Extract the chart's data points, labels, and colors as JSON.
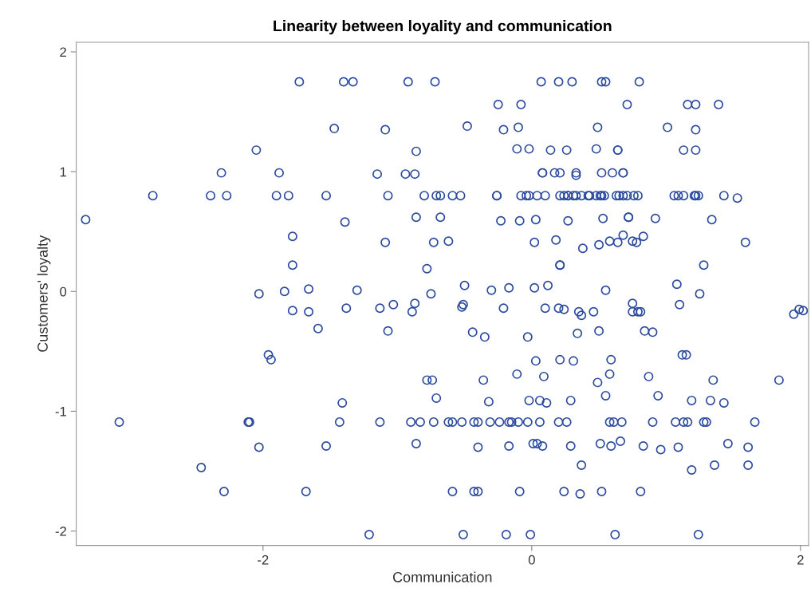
{
  "chart_data": {
    "type": "scatter",
    "title": "Linearity between loyality and communication",
    "xlabel": "Communication",
    "ylabel": "Customers' loyalty",
    "xlim": [
      -3.39,
      2.06
    ],
    "ylim": [
      -2.12,
      2.08
    ],
    "xticks": [
      -2,
      0,
      2
    ],
    "yticks": [
      -2,
      -1,
      0,
      1,
      2
    ],
    "grid": false,
    "marker": "circle",
    "series": [
      {
        "color": "#2b4a9e",
        "x": [
          -1.73,
          -1.4,
          -1.33,
          -0.92,
          -0.72,
          0.07,
          0.2,
          0.3,
          0.52,
          0.55,
          0.8,
          -0.25,
          -0.08,
          0.71,
          1.16,
          1.22,
          1.39,
          -1.47,
          -1.09,
          -0.48,
          -0.21,
          -0.1,
          0.49,
          1.01,
          1.22,
          -2.05,
          -0.86,
          -0.11,
          -0.02,
          0.14,
          0.26,
          0.48,
          0.64,
          0.64,
          1.13,
          1.22,
          -2.31,
          -1.88,
          -1.15,
          -0.94,
          -0.87,
          0.08,
          0.08,
          0.17,
          0.21,
          0.33,
          0.33,
          0.52,
          0.6,
          0.68,
          0.68,
          -2.82,
          -2.39,
          -2.27,
          -1.9,
          -1.81,
          -1.53,
          -1.07,
          -0.8,
          -0.71,
          -0.68,
          -0.59,
          -0.53,
          -0.26,
          -0.26,
          -0.08,
          -0.04,
          -0.02,
          0.04,
          0.1,
          0.21,
          0.24,
          0.27,
          0.27,
          0.31,
          0.33,
          0.37,
          0.42,
          0.43,
          0.48,
          0.51,
          0.52,
          0.54,
          0.63,
          0.65,
          0.68,
          0.71,
          0.76,
          0.79,
          1.06,
          1.09,
          1.13,
          1.21,
          1.22,
          1.24,
          1.43,
          1.53,
          -3.32,
          -1.39,
          -0.86,
          -0.68,
          -0.23,
          -0.09,
          0.03,
          0.27,
          0.53,
          0.72,
          0.72,
          0.92,
          1.34,
          -1.78,
          -1.09,
          -0.73,
          -0.62,
          0.02,
          0.18,
          0.38,
          0.5,
          0.58,
          0.64,
          0.68,
          0.75,
          0.78,
          0.83,
          1.59,
          -1.78,
          0.21,
          0.21,
          1.28,
          -0.78,
          -1.66,
          -1.84,
          -2.03,
          -1.3,
          -0.75,
          -0.5,
          -0.3,
          -0.17,
          0.02,
          0.12,
          0.55,
          1.08,
          1.25,
          -1.78,
          -1.66,
          -1.59,
          -1.96,
          -1.94,
          -3.07,
          -2.11,
          -2.1,
          -2.03,
          -2.46,
          -2.29,
          -1.68,
          -1.53,
          -1.41,
          -1.43,
          -1.38,
          -1.13,
          -1.03,
          -0.87,
          -0.89,
          -0.51,
          -0.52,
          -0.21,
          0.1,
          0.2,
          0.24,
          -1.07,
          -0.44,
          -0.35,
          -0.03,
          0.03,
          0.21,
          -0.78,
          -0.74,
          -0.36,
          -0.11,
          0.09,
          -0.71,
          -0.32,
          -0.02,
          0.06,
          0.11,
          -1.13,
          -0.9,
          -0.83,
          -0.73,
          -0.62,
          -0.59,
          -0.52,
          -0.43,
          -0.4,
          -0.31,
          -0.24,
          -0.17,
          -0.15,
          -0.1,
          -0.03,
          0.06,
          0.2,
          0.26,
          0.58,
          0.61,
          0.67,
          0.9,
          1.07,
          1.13,
          1.16,
          1.28,
          1.3,
          1.66,
          -0.86,
          -0.4,
          -0.17,
          0.01,
          0.04,
          0.08,
          0.29,
          0.51,
          0.59,
          0.66,
          0.83,
          0.96,
          1.09,
          1.46,
          1.61,
          0.37,
          1.19,
          1.36,
          1.61,
          -0.59,
          -0.43,
          -0.4,
          -0.09,
          0.24,
          0.36,
          0.52,
          0.81,
          -1.21,
          -0.51,
          -0.19,
          -0.01,
          0.62,
          1.24,
          0.75,
          1.1,
          1.95,
          1.99,
          2.02,
          0.35,
          0.37,
          0.46,
          0.75,
          0.79,
          0.81,
          0.34,
          0.5,
          0.84,
          0.9,
          0.31,
          0.59,
          1.12,
          1.15,
          0.58,
          0.49,
          0.87,
          1.35,
          1.84,
          0.29,
          0.55,
          0.94,
          1.19,
          1.33,
          1.43
        ],
        "values": [
          1.75,
          1.75,
          1.75,
          1.75,
          1.75,
          1.75,
          1.75,
          1.75,
          1.75,
          1.75,
          1.75,
          1.56,
          1.56,
          1.56,
          1.56,
          1.56,
          1.56,
          1.36,
          1.35,
          1.38,
          1.35,
          1.37,
          1.37,
          1.37,
          1.35,
          1.18,
          1.17,
          1.19,
          1.19,
          1.18,
          1.18,
          1.19,
          1.18,
          1.18,
          1.18,
          1.18,
          0.99,
          0.99,
          0.98,
          0.98,
          0.98,
          0.99,
          0.99,
          0.99,
          0.99,
          0.99,
          0.97,
          0.99,
          0.99,
          0.99,
          0.99,
          0.8,
          0.8,
          0.8,
          0.8,
          0.8,
          0.8,
          0.8,
          0.8,
          0.8,
          0.8,
          0.8,
          0.8,
          0.8,
          0.8,
          0.8,
          0.8,
          0.8,
          0.8,
          0.8,
          0.8,
          0.8,
          0.8,
          0.8,
          0.8,
          0.8,
          0.8,
          0.8,
          0.8,
          0.8,
          0.8,
          0.8,
          0.8,
          0.8,
          0.8,
          0.8,
          0.8,
          0.8,
          0.8,
          0.8,
          0.8,
          0.8,
          0.8,
          0.8,
          0.8,
          0.8,
          0.78,
          0.6,
          0.58,
          0.62,
          0.62,
          0.59,
          0.59,
          0.6,
          0.59,
          0.61,
          0.62,
          0.62,
          0.61,
          0.6,
          0.46,
          0.41,
          0.41,
          0.42,
          0.41,
          0.43,
          0.36,
          0.39,
          0.42,
          0.41,
          0.47,
          0.42,
          0.41,
          0.46,
          0.41,
          0.22,
          0.22,
          0.22,
          0.22,
          0.19,
          0.02,
          0,
          -0.02,
          0.01,
          -0.02,
          0.05,
          0.01,
          0.03,
          0.03,
          0.05,
          0.01,
          0.06,
          -0.02,
          -0.16,
          -0.17,
          -0.31,
          -0.53,
          -0.57,
          -1.09,
          -1.09,
          -1.09,
          -1.3,
          -1.47,
          -1.67,
          -1.67,
          -1.29,
          -0.93,
          -1.09,
          -0.14,
          -0.14,
          -0.11,
          -0.1,
          -0.17,
          -0.11,
          -0.13,
          -0.14,
          -0.14,
          -0.14,
          -0.15,
          -0.33,
          -0.34,
          -0.38,
          -0.38,
          -0.58,
          -0.57,
          -0.74,
          -0.74,
          -0.74,
          -0.69,
          -0.71,
          -0.89,
          -0.92,
          -0.91,
          -0.91,
          -0.93,
          -1.09,
          -1.09,
          -1.09,
          -1.09,
          -1.09,
          -1.09,
          -1.09,
          -1.09,
          -1.09,
          -1.09,
          -1.09,
          -1.09,
          -1.09,
          -1.09,
          -1.09,
          -1.09,
          -1.09,
          -1.09,
          -1.09,
          -1.09,
          -1.09,
          -1.09,
          -1.09,
          -1.09,
          -1.09,
          -1.09,
          -1.09,
          -1.09,
          -1.27,
          -1.3,
          -1.29,
          -1.27,
          -1.27,
          -1.29,
          -1.29,
          -1.27,
          -1.29,
          -1.25,
          -1.29,
          -1.32,
          -1.3,
          -1.27,
          -1.3,
          -1.45,
          -1.49,
          -1.45,
          -1.45,
          -1.67,
          -1.67,
          -1.67,
          -1.67,
          -1.67,
          -1.69,
          -1.67,
          -1.67,
          -2.03,
          -2.03,
          -2.03,
          -2.03,
          -2.03,
          -2.03,
          -0.1,
          -0.11,
          -0.19,
          -0.15,
          -0.16,
          -0.17,
          -0.2,
          -0.17,
          -0.17,
          -0.17,
          -0.17,
          -0.35,
          -0.33,
          -0.33,
          -0.34,
          -0.58,
          -0.57,
          -0.53,
          -0.53,
          -0.69,
          -0.76,
          -0.71,
          -0.74,
          -0.74,
          -0.91,
          -0.87,
          -0.87,
          -0.91,
          -0.91,
          -0.93
        ]
      }
    ]
  }
}
